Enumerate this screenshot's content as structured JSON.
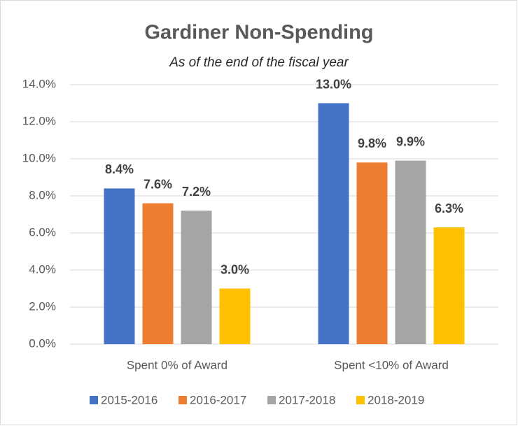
{
  "chart_data": {
    "type": "bar",
    "title": "Gardiner Non-Spending",
    "subtitle": "As of the end of the fiscal year",
    "categories": [
      "Spent 0% of Award",
      "Spent <10% of Award"
    ],
    "series": [
      {
        "name": "2015-2016",
        "color": "#4472c4",
        "values": [
          8.4,
          13.0
        ],
        "value_labels": [
          "8.4%",
          "13.0%"
        ]
      },
      {
        "name": "2016-2017",
        "color": "#ed7d31",
        "values": [
          7.6,
          9.8
        ],
        "value_labels": [
          "7.6%",
          "9.8%"
        ]
      },
      {
        "name": "2017-2018",
        "color": "#a5a5a5",
        "values": [
          7.2,
          9.9
        ],
        "value_labels": [
          "7.2%",
          "9.9%"
        ]
      },
      {
        "name": "2018-2019",
        "color": "#ffc000",
        "values": [
          3.0,
          6.3
        ],
        "value_labels": [
          "3.0%",
          "6.3%"
        ]
      }
    ],
    "ylim": [
      0,
      14
    ],
    "yticks": [
      {
        "value": 0,
        "label": "0.0%"
      },
      {
        "value": 2,
        "label": "2.0%"
      },
      {
        "value": 4,
        "label": "4.0%"
      },
      {
        "value": 6,
        "label": "6.0%"
      },
      {
        "value": 8,
        "label": "8.0%"
      },
      {
        "value": 10,
        "label": "10.0%"
      },
      {
        "value": 12,
        "label": "12.0%"
      },
      {
        "value": 14,
        "label": "14.0%"
      }
    ],
    "grid": true,
    "legend": "bottom"
  }
}
